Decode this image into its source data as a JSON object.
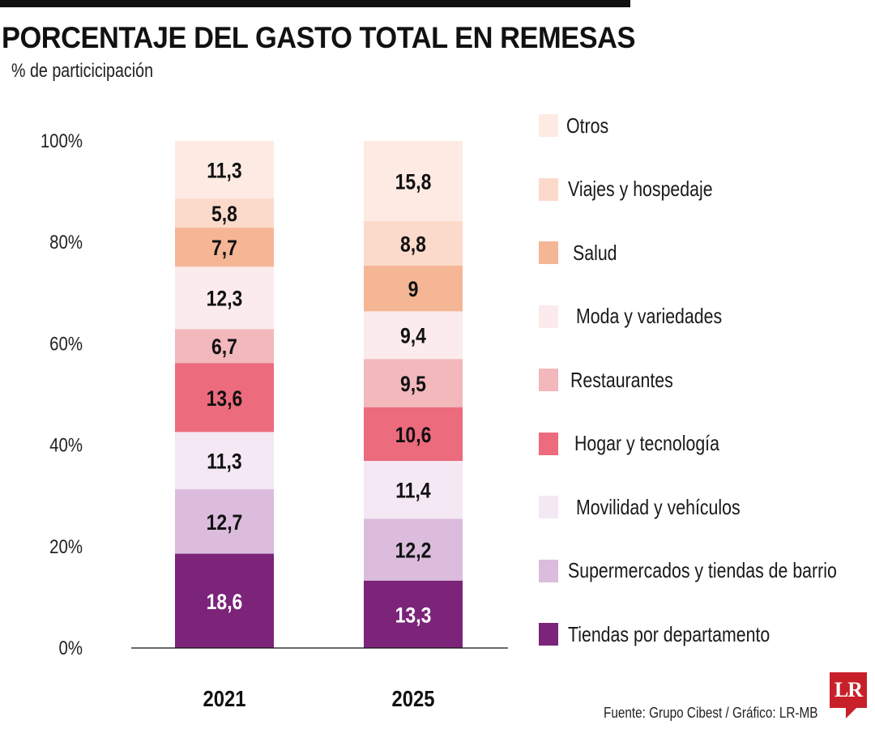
{
  "header": {
    "title": "PORCENTAJE DEL GASTO TOTAL EN REMESAS",
    "subtitle": "% de particicipación"
  },
  "footer": {
    "source": "Fuente: Grupo Cibest / Gráfico: LR-MB",
    "logo_text": "LR",
    "logo_color": "#c8202a"
  },
  "chart_data": {
    "type": "bar",
    "stacked": true,
    "title": "PORCENTAJE DEL GASTO TOTAL EN REMESAS",
    "ylabel": "% de particicipación",
    "xlabel": "",
    "ylim": [
      0,
      100
    ],
    "yticks": [
      "0%",
      "20%",
      "40%",
      "60%",
      "80%",
      "100%"
    ],
    "categories": [
      "2021",
      "2025"
    ],
    "legend_position": "right",
    "grid": false,
    "series": [
      {
        "name": "Tiendas por departamento",
        "color": "#7b2479",
        "label_color": "#ffffff",
        "values": [
          18.6,
          13.3
        ],
        "labels": [
          "18,6",
          "13,3"
        ]
      },
      {
        "name": "Supermercados y tiendas de barrio",
        "color": "#dbbcdc",
        "label_color": "#111111",
        "values": [
          12.7,
          12.2
        ],
        "labels": [
          "12,7",
          "12,2"
        ]
      },
      {
        "name": "Movilidad y vehículos",
        "color": "#f3e8f4",
        "label_color": "#111111",
        "values": [
          11.3,
          11.4
        ],
        "labels": [
          "11,3",
          "11,4"
        ]
      },
      {
        "name": "Hogar y tecnología",
        "color": "#ec6b7c",
        "label_color": "#111111",
        "values": [
          13.6,
          10.6
        ],
        "labels": [
          "13,6",
          "10,6"
        ]
      },
      {
        "name": "Restaurantes",
        "color": "#f2b8bc",
        "label_color": "#111111",
        "values": [
          6.7,
          9.5
        ],
        "labels": [
          "6,7",
          "9,5"
        ]
      },
      {
        "name": "Moda y variedades",
        "color": "#fcebec",
        "label_color": "#111111",
        "values": [
          12.3,
          9.4
        ],
        "labels": [
          "12,3",
          "9,4"
        ]
      },
      {
        "name": "Salud",
        "color": "#f5b696",
        "label_color": "#111111",
        "values": [
          7.7,
          9.0
        ],
        "labels": [
          "7,7",
          "9"
        ]
      },
      {
        "name": "Viajes y hospedaje",
        "color": "#fcdacb",
        "label_color": "#111111",
        "values": [
          5.8,
          8.8
        ],
        "labels": [
          "5,8",
          "8,8"
        ]
      },
      {
        "name": "Otros",
        "color": "#fdebe3",
        "label_color": "#111111",
        "values": [
          11.3,
          15.8
        ],
        "labels": [
          "11,3",
          "15,8"
        ]
      }
    ]
  }
}
